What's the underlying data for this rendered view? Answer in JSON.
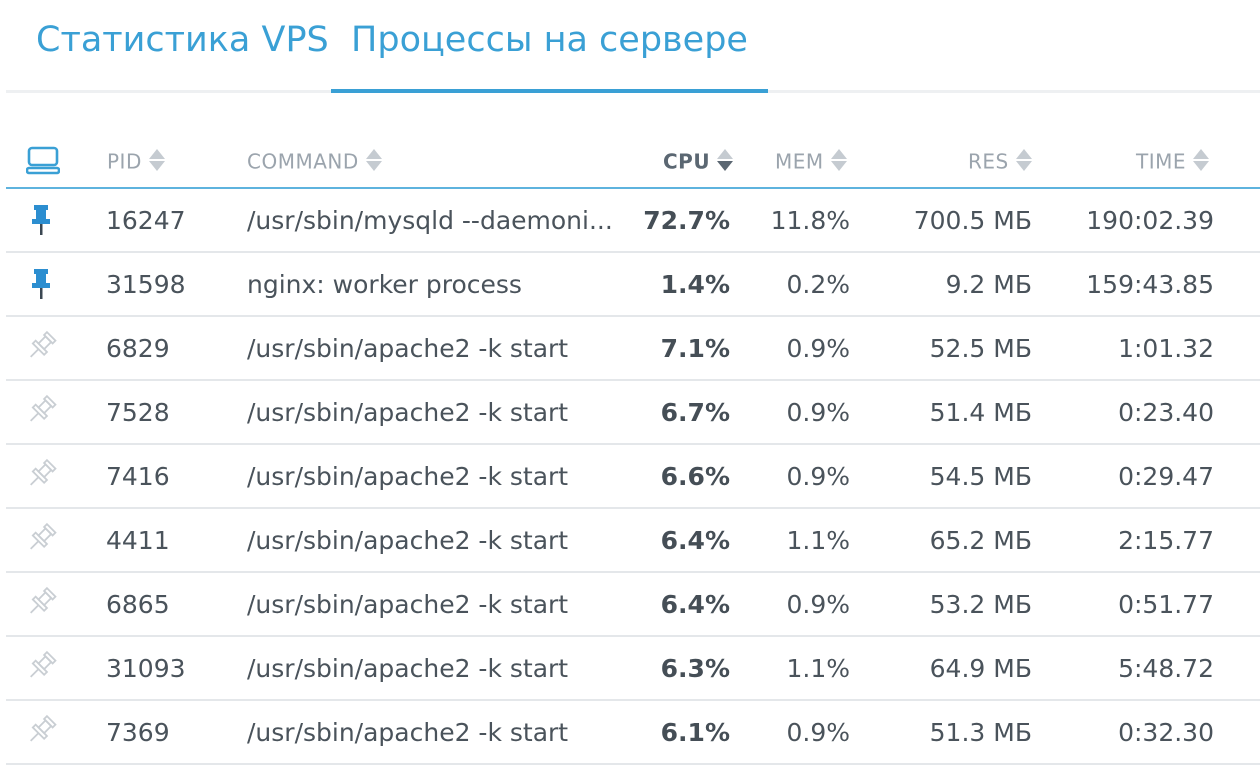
{
  "tabs": [
    {
      "label": "Статистика VPS"
    },
    {
      "label": "Процессы на сервере"
    }
  ],
  "table": {
    "headers": {
      "pid": "PID",
      "command": "COMMAND",
      "cpu": "CPU",
      "mem": "MEM",
      "res": "RES",
      "time": "TIME"
    },
    "sorted_by": "CPU",
    "rows": [
      {
        "pinned": true,
        "pid": "16247",
        "command": "/usr/sbin/mysqld --daemoni...",
        "cpu": "72.7%",
        "mem": "11.8%",
        "res": "700.5 МБ",
        "time": "190:02.39"
      },
      {
        "pinned": true,
        "pid": "31598",
        "command": "nginx: worker process",
        "cpu": "1.4%",
        "mem": "0.2%",
        "res": "9.2 МБ",
        "time": "159:43.85"
      },
      {
        "pinned": false,
        "pid": "6829",
        "command": "/usr/sbin/apache2 -k start",
        "cpu": "7.1%",
        "mem": "0.9%",
        "res": "52.5 МБ",
        "time": "1:01.32"
      },
      {
        "pinned": false,
        "pid": "7528",
        "command": "/usr/sbin/apache2 -k start",
        "cpu": "6.7%",
        "mem": "0.9%",
        "res": "51.4 МБ",
        "time": "0:23.40"
      },
      {
        "pinned": false,
        "pid": "7416",
        "command": "/usr/sbin/apache2 -k start",
        "cpu": "6.6%",
        "mem": "0.9%",
        "res": "54.5 МБ",
        "time": "0:29.47"
      },
      {
        "pinned": false,
        "pid": "4411",
        "command": "/usr/sbin/apache2 -k start",
        "cpu": "6.4%",
        "mem": "1.1%",
        "res": "65.2 МБ",
        "time": "2:15.77"
      },
      {
        "pinned": false,
        "pid": "6865",
        "command": "/usr/sbin/apache2 -k start",
        "cpu": "6.4%",
        "mem": "0.9%",
        "res": "53.2 МБ",
        "time": "0:51.77"
      },
      {
        "pinned": false,
        "pid": "31093",
        "command": "/usr/sbin/apache2 -k start",
        "cpu": "6.3%",
        "mem": "1.1%",
        "res": "64.9 МБ",
        "time": "5:48.72"
      },
      {
        "pinned": false,
        "pid": "7369",
        "command": "/usr/sbin/apache2 -k start",
        "cpu": "6.1%",
        "mem": "0.9%",
        "res": "51.3 МБ",
        "time": "0:32.30"
      }
    ]
  },
  "icons": {
    "header": "monitor-icon",
    "pinned": "pin-filled-icon",
    "unpinned": "pin-outline-icon"
  },
  "colors": {
    "accent": "#3aa0d5",
    "pinned": "#2c8ed0",
    "unpinned": "#c9ced3"
  }
}
